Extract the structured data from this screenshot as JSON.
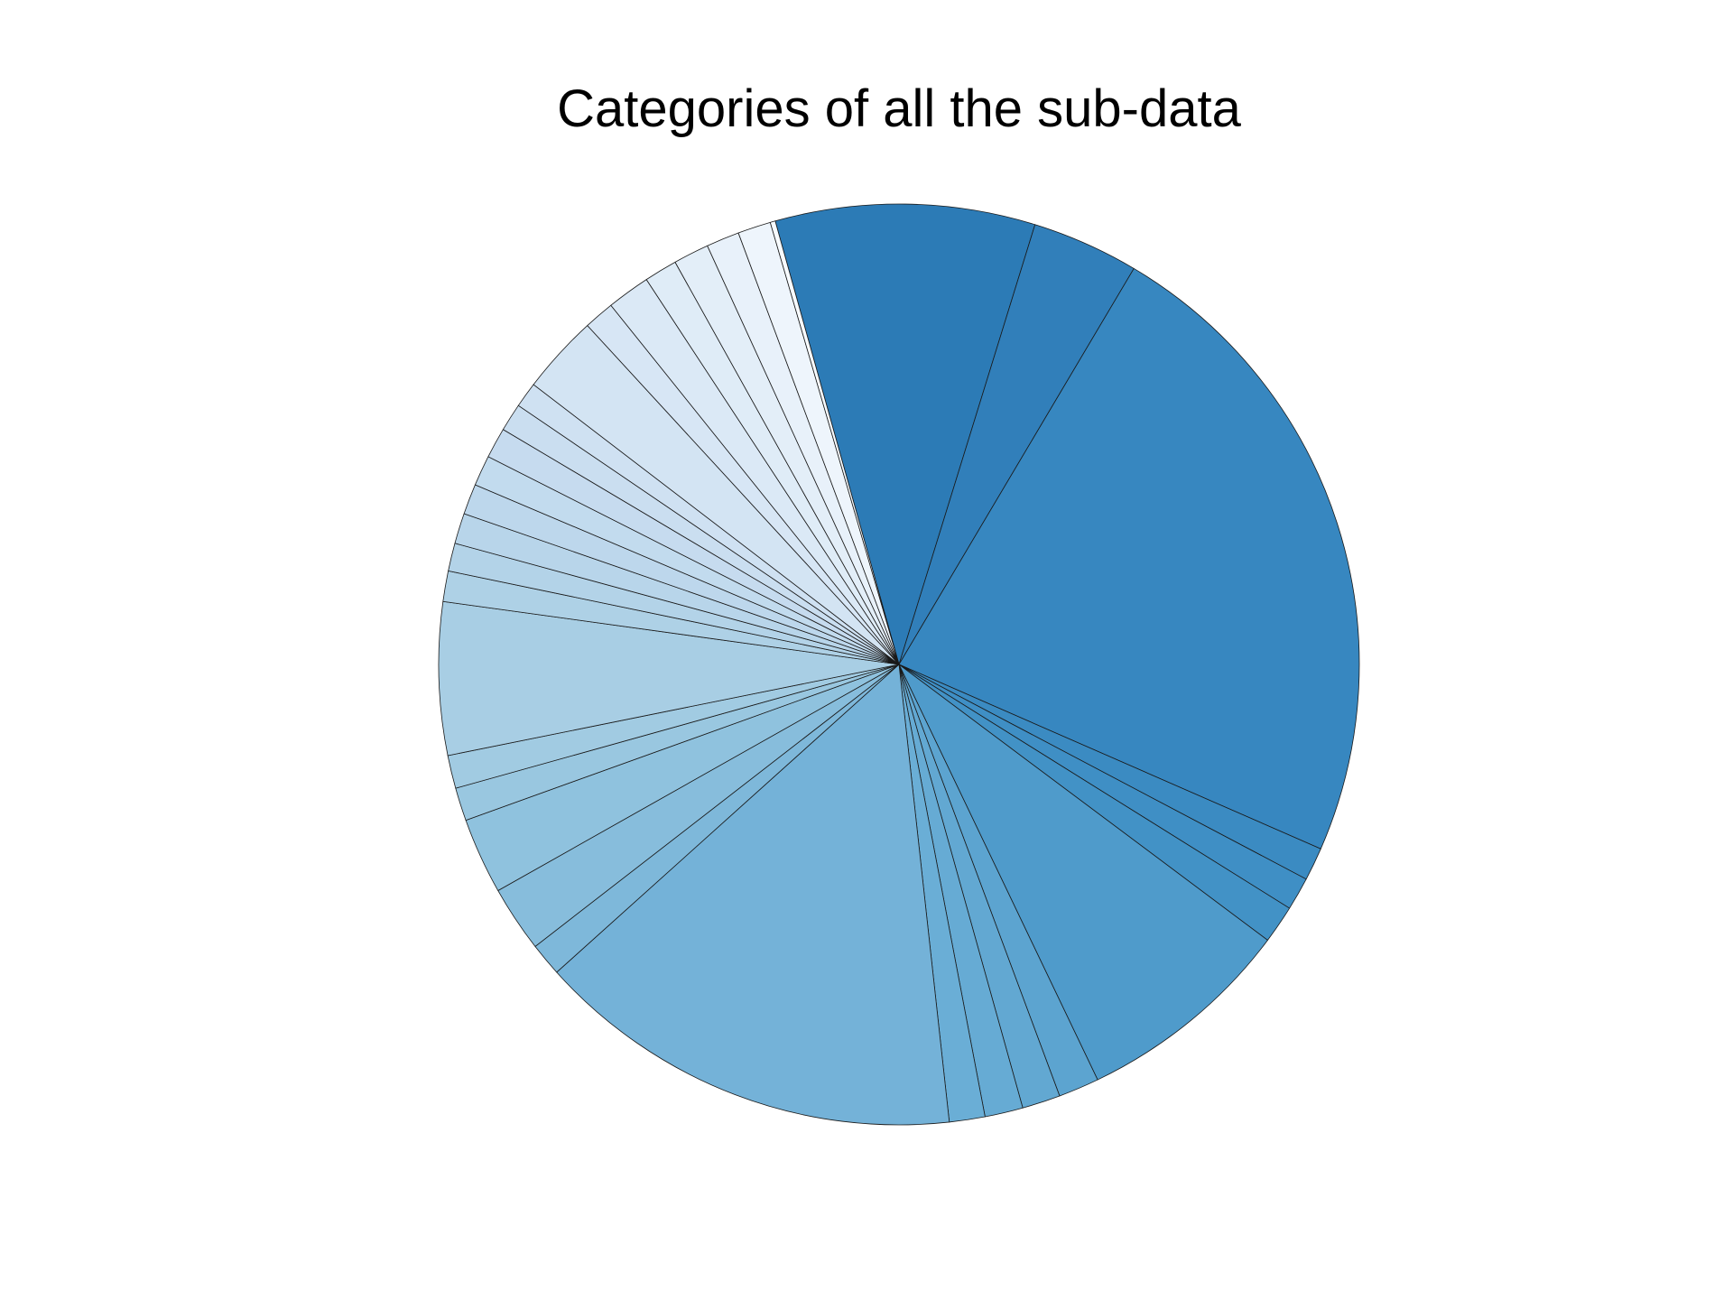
{
  "chart_data": {
    "type": "pie",
    "title": "Categories of all the sub-data",
    "startangle_deg": 105.6,
    "direction": "clockwise",
    "legend": "none",
    "values": [
      10.2,
      4.2,
      25.8,
      1.3,
      1.3,
      1.5,
      8.6,
      1.6,
      1.5,
      1.5,
      1.4,
      16.9,
      1.3,
      2.6,
      3.0,
      1.3,
      1.3,
      6.0,
      1.2,
      1.1,
      1.2,
      1.2,
      1.2,
      1.2,
      1.1,
      1.0,
      3.1,
      1.2,
      1.7,
      1.3,
      1.4,
      1.3,
      1.3,
      0.2
    ],
    "colors": [
      "#2c7bb6",
      "#317fba",
      "#3787c0",
      "#3b8bc2",
      "#3f8fc5",
      "#4292c6",
      "#4f9bcb",
      "#5ca4d0",
      "#62a8d2",
      "#66abd4",
      "#6aaed6",
      "#74b2d8",
      "#7eb8da",
      "#87bddc",
      "#8fc2de",
      "#99c7e0",
      "#a1cbe2",
      "#a8cee4",
      "#aed1e6",
      "#b3d3e8",
      "#b8d5ea",
      "#bdd7ec",
      "#c2dbee",
      "#c6dbef",
      "#cadef0",
      "#cfe1f2",
      "#d3e4f3",
      "#d7e6f5",
      "#dbe9f6",
      "#dfecf7",
      "#e3eef8",
      "#e8f1fa",
      "#eef5fc",
      "#f7fbff"
    ]
  }
}
